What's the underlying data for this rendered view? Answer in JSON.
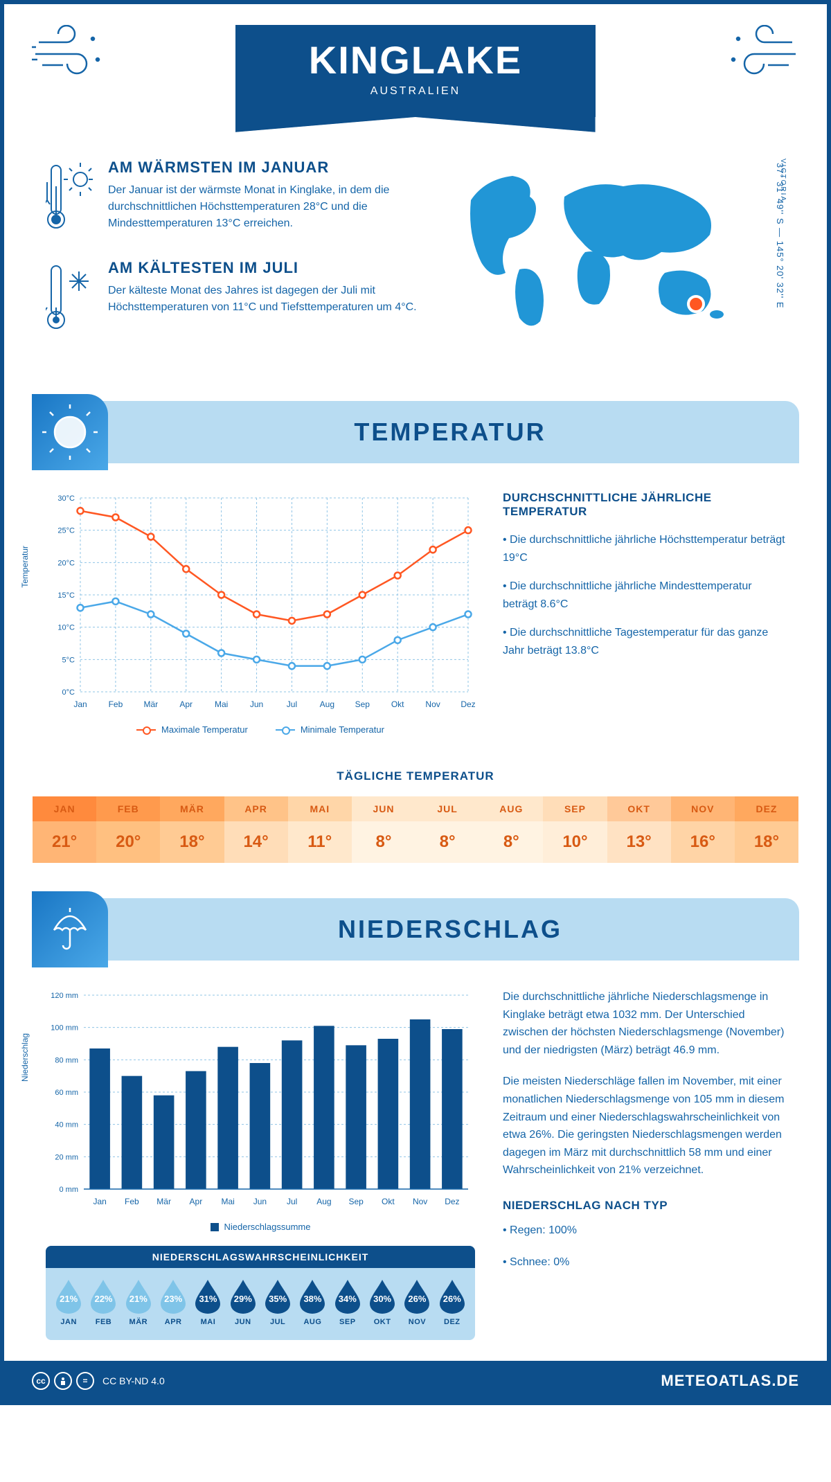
{
  "header": {
    "title": "KINGLAKE",
    "subtitle": "AUSTRALIEN"
  },
  "location": {
    "region": "VICTORIA",
    "coords": "37° 31' 49'' S — 145° 20' 32'' E",
    "marker_color": "#ff5722",
    "map_color": "#2196d6"
  },
  "intro": {
    "warm": {
      "title": "AM WÄRMSTEN IM JANUAR",
      "text": "Der Januar ist der wärmste Monat in Kinglake, in dem die durchschnittlichen Höchsttemperaturen 28°C und die Mindesttemperaturen 13°C erreichen."
    },
    "cold": {
      "title": "AM KÄLTESTEN IM JULI",
      "text": "Der kälteste Monat des Jahres ist dagegen der Juli mit Höchsttemperaturen von 11°C und Tiefsttemperaturen um 4°C."
    }
  },
  "temperature": {
    "section_title": "TEMPERATUR",
    "chart": {
      "type": "line",
      "months": [
        "Jan",
        "Feb",
        "Mär",
        "Apr",
        "Mai",
        "Jun",
        "Jul",
        "Aug",
        "Sep",
        "Okt",
        "Nov",
        "Dez"
      ],
      "max_series": [
        28,
        27,
        24,
        19,
        15,
        12,
        11,
        12,
        15,
        18,
        22,
        25
      ],
      "min_series": [
        13,
        14,
        12,
        9,
        6,
        5,
        4,
        4,
        5,
        8,
        10,
        12
      ],
      "max_color": "#ff5722",
      "min_color": "#4aa8e8",
      "ylim": [
        0,
        30
      ],
      "ytick_step": 5,
      "y_unit": "°C",
      "grid_color": "#8fc4e6",
      "background": "#ffffff",
      "ylabel": "Temperatur",
      "legend_max": "Maximale Temperatur",
      "legend_min": "Minimale Temperatur"
    },
    "annual": {
      "heading": "DURCHSCHNITTLICHE JÄHRLICHE TEMPERATUR",
      "bullets": [
        "• Die durchschnittliche jährliche Höchsttemperatur beträgt 19°C",
        "• Die durchschnittliche jährliche Mindesttemperatur beträgt 8.6°C",
        "• Die durchschnittliche Tagestemperatur für das ganze Jahr beträgt 13.8°C"
      ]
    },
    "daily": {
      "title": "TÄGLICHE TEMPERATUR",
      "months": [
        "JAN",
        "FEB",
        "MÄR",
        "APR",
        "MAI",
        "JUN",
        "JUL",
        "AUG",
        "SEP",
        "OKT",
        "NOV",
        "DEZ"
      ],
      "values": [
        "21°",
        "20°",
        "18°",
        "14°",
        "11°",
        "8°",
        "8°",
        "8°",
        "10°",
        "13°",
        "16°",
        "18°"
      ],
      "head_colors": [
        "#ff8a3d",
        "#ff9a4d",
        "#ffa85e",
        "#ffc388",
        "#ffd6a8",
        "#ffe8cc",
        "#ffe8cc",
        "#ffe8cc",
        "#ffddb8",
        "#ffc999",
        "#ffb575",
        "#ffa85e"
      ],
      "body_colors": [
        "#ffb575",
        "#ffc080",
        "#ffcb94",
        "#ffddb8",
        "#ffe8cc",
        "#fff3e2",
        "#fff3e2",
        "#fff3e2",
        "#ffeed9",
        "#ffe2c3",
        "#ffd4a6",
        "#ffcb94"
      ],
      "text_color": "#d85a13"
    }
  },
  "precipitation": {
    "section_title": "NIEDERSCHLAG",
    "chart": {
      "type": "bar",
      "months": [
        "Jan",
        "Feb",
        "Mär",
        "Apr",
        "Mai",
        "Jun",
        "Jul",
        "Aug",
        "Sep",
        "Okt",
        "Nov",
        "Dez"
      ],
      "values": [
        87,
        70,
        58,
        73,
        88,
        78,
        92,
        101,
        89,
        93,
        105,
        99
      ],
      "bar_color": "#0d4f8b",
      "ylim": [
        0,
        120
      ],
      "ytick_step": 20,
      "y_unit": " mm",
      "grid_color": "#8fc4e6",
      "ylabel": "Niederschlag",
      "legend": "Niederschlagssumme"
    },
    "text1": "Die durchschnittliche jährliche Niederschlagsmenge in Kinglake beträgt etwa 1032 mm. Der Unterschied zwischen der höchsten Niederschlagsmenge (November) und der niedrigsten (März) beträgt 46.9 mm.",
    "text2": "Die meisten Niederschläge fallen im November, mit einer monatlichen Niederschlagsmenge von 105 mm in diesem Zeitraum und einer Niederschlagswahrscheinlichkeit von etwa 26%. Die geringsten Niederschlagsmengen werden dagegen im März mit durchschnittlich 58 mm und einer Wahrscheinlichkeit von 21% verzeichnet.",
    "by_type": {
      "heading": "NIEDERSCHLAG NACH TYP",
      "rain": "• Regen: 100%",
      "snow": "• Schnee: 0%"
    },
    "probability": {
      "title": "NIEDERSCHLAGSWAHRSCHEINLICHKEIT",
      "months": [
        "JAN",
        "FEB",
        "MÄR",
        "APR",
        "MAI",
        "JUN",
        "JUL",
        "AUG",
        "SEP",
        "OKT",
        "NOV",
        "DEZ"
      ],
      "values": [
        "21%",
        "22%",
        "21%",
        "23%",
        "31%",
        "29%",
        "35%",
        "38%",
        "34%",
        "30%",
        "26%",
        "26%"
      ],
      "colors": [
        "#7fc4e8",
        "#7fc4e8",
        "#7fc4e8",
        "#7fc4e8",
        "#0d4f8b",
        "#0d4f8b",
        "#0d4f8b",
        "#0d4f8b",
        "#0d4f8b",
        "#0d4f8b",
        "#0d4f8b",
        "#0d4f8b"
      ]
    }
  },
  "footer": {
    "license": "CC BY-ND 4.0",
    "site": "METEOATLAS.DE"
  }
}
